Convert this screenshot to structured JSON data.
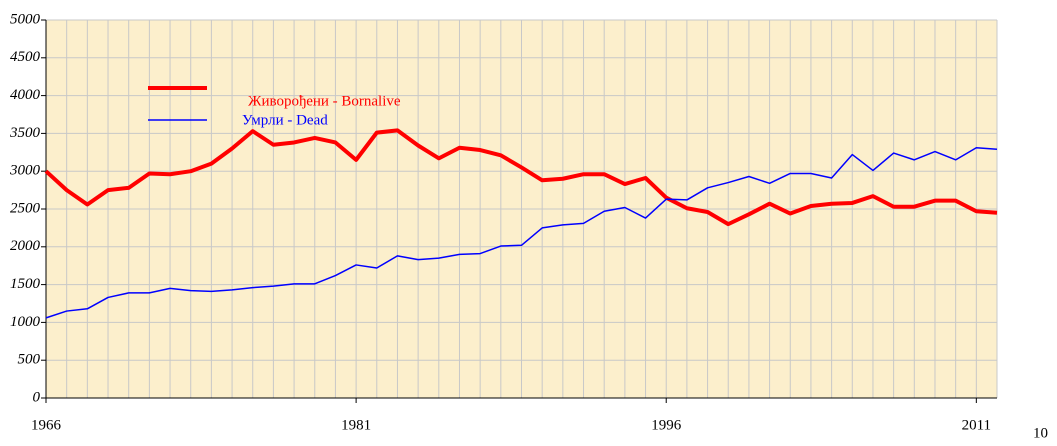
{
  "chart_data": {
    "type": "line",
    "x": [
      1966,
      1967,
      1968,
      1969,
      1970,
      1971,
      1972,
      1973,
      1974,
      1975,
      1976,
      1977,
      1978,
      1979,
      1980,
      1981,
      1982,
      1983,
      1984,
      1985,
      1986,
      1987,
      1988,
      1989,
      1990,
      1991,
      1992,
      1993,
      1994,
      1995,
      1996,
      1997,
      1998,
      1999,
      2000,
      2001,
      2002,
      2003,
      2004,
      2005,
      2006,
      2007,
      2008,
      2009,
      2010,
      2011,
      2012
    ],
    "series": [
      {
        "name": "Живорођени - Bornalive",
        "color": "#ff0000",
        "values": [
          3000,
          2750,
          2560,
          2750,
          2780,
          2970,
          2960,
          3000,
          3100,
          3300,
          3530,
          3350,
          3380,
          3440,
          3380,
          3150,
          3510,
          3540,
          3340,
          3170,
          3310,
          3280,
          3210,
          3050,
          2880,
          2900,
          2960,
          2960,
          2830,
          2910,
          2650,
          2510,
          2460,
          2300,
          2430,
          2570,
          2440,
          2540,
          2570,
          2580,
          2670,
          2530,
          2530,
          2610,
          2610,
          2470,
          2450
        ]
      },
      {
        "name": "Умрли - Dead",
        "color": "#0000ff",
        "values": [
          1060,
          1150,
          1180,
          1330,
          1390,
          1390,
          1450,
          1420,
          1410,
          1430,
          1460,
          1480,
          1510,
          1510,
          1620,
          1760,
          1720,
          1880,
          1830,
          1850,
          1900,
          1910,
          2010,
          2020,
          2250,
          2290,
          2310,
          2470,
          2520,
          2380,
          2630,
          2620,
          2780,
          2850,
          2930,
          2840,
          2970,
          2970,
          2910,
          3220,
          3010,
          3240,
          3150,
          3260,
          3150,
          3310,
          3290
        ]
      }
    ],
    "xlim": [
      1966,
      2012
    ],
    "xticks": [
      1966,
      1981,
      1996,
      2011
    ],
    "ylim": [
      0,
      5000
    ],
    "yticks": [
      0,
      500,
      1000,
      1500,
      2000,
      2500,
      3000,
      3500,
      4000,
      4500,
      5000
    ],
    "grid": true,
    "page_number": "10"
  }
}
